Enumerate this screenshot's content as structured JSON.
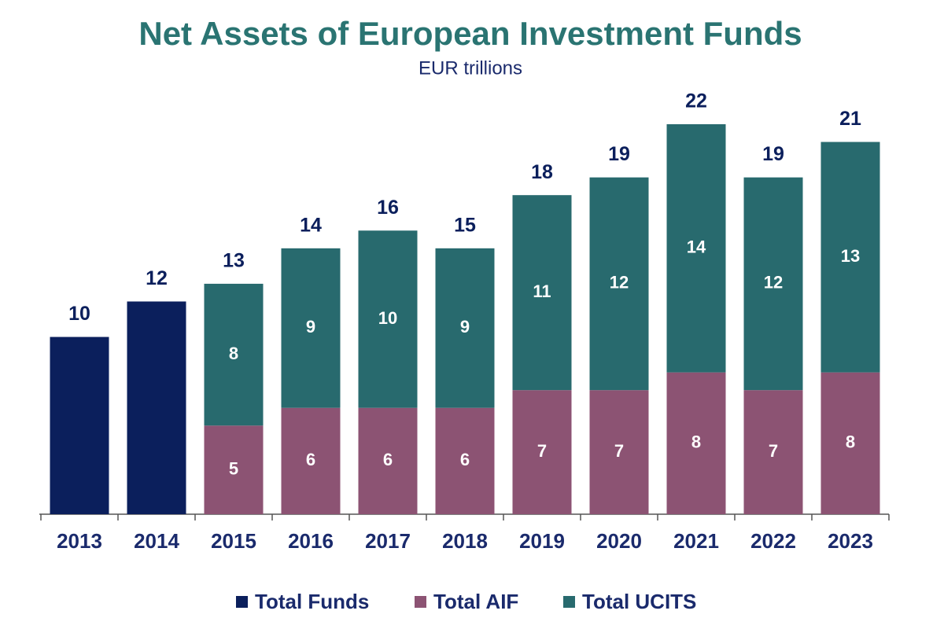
{
  "chart_data": {
    "type": "stacked_bar",
    "title": "Net Assets of European Investment Funds",
    "subtitle": "EUR trillions",
    "categories": [
      "2013",
      "2014",
      "2015",
      "2016",
      "2017",
      "2018",
      "2019",
      "2020",
      "2021",
      "2022",
      "2023"
    ],
    "series": [
      {
        "name": "Total Funds",
        "color": "#0b1f5c",
        "values": [
          10,
          12,
          null,
          null,
          null,
          null,
          null,
          null,
          null,
          null,
          null
        ]
      },
      {
        "name": "Total AIF",
        "color": "#8c5373",
        "values": [
          null,
          null,
          5,
          6,
          6,
          6,
          7,
          7,
          8,
          7,
          8
        ]
      },
      {
        "name": "Total UCITS",
        "color": "#286a6e",
        "values": [
          null,
          null,
          8,
          9,
          10,
          9,
          11,
          12,
          14,
          12,
          13
        ]
      }
    ],
    "totals": [
      10,
      12,
      13,
      14,
      16,
      15,
      18,
      19,
      22,
      19,
      21
    ]
  }
}
